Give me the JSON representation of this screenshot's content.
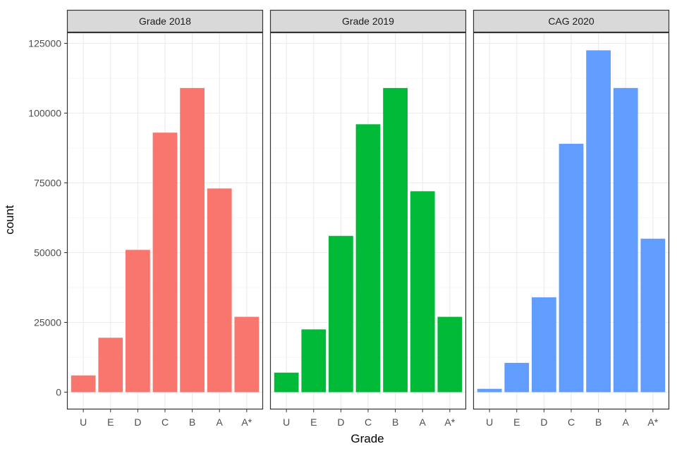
{
  "chart_data": {
    "type": "bar",
    "xlabel": "Grade",
    "ylabel": "count",
    "categories": [
      "U",
      "E",
      "D",
      "C",
      "B",
      "A",
      "A*"
    ],
    "ylim": [
      0,
      125000
    ],
    "yticks": [
      0,
      25000,
      50000,
      75000,
      100000,
      125000
    ],
    "ytick_labels": [
      "0",
      "25000",
      "50000",
      "75000",
      "100000",
      "125000"
    ],
    "grid": true,
    "series": [
      {
        "name": "Grade 2018",
        "color": "#F8766D",
        "values": [
          6000,
          19500,
          51000,
          93000,
          109000,
          73000,
          27000
        ]
      },
      {
        "name": "Grade 2019",
        "color": "#00BA38",
        "values": [
          7000,
          22500,
          56000,
          96000,
          109000,
          72000,
          27000
        ]
      },
      {
        "name": "CAG 2020",
        "color": "#619CFF",
        "values": [
          1200,
          10500,
          34000,
          89000,
          122500,
          109000,
          55000
        ]
      }
    ]
  }
}
